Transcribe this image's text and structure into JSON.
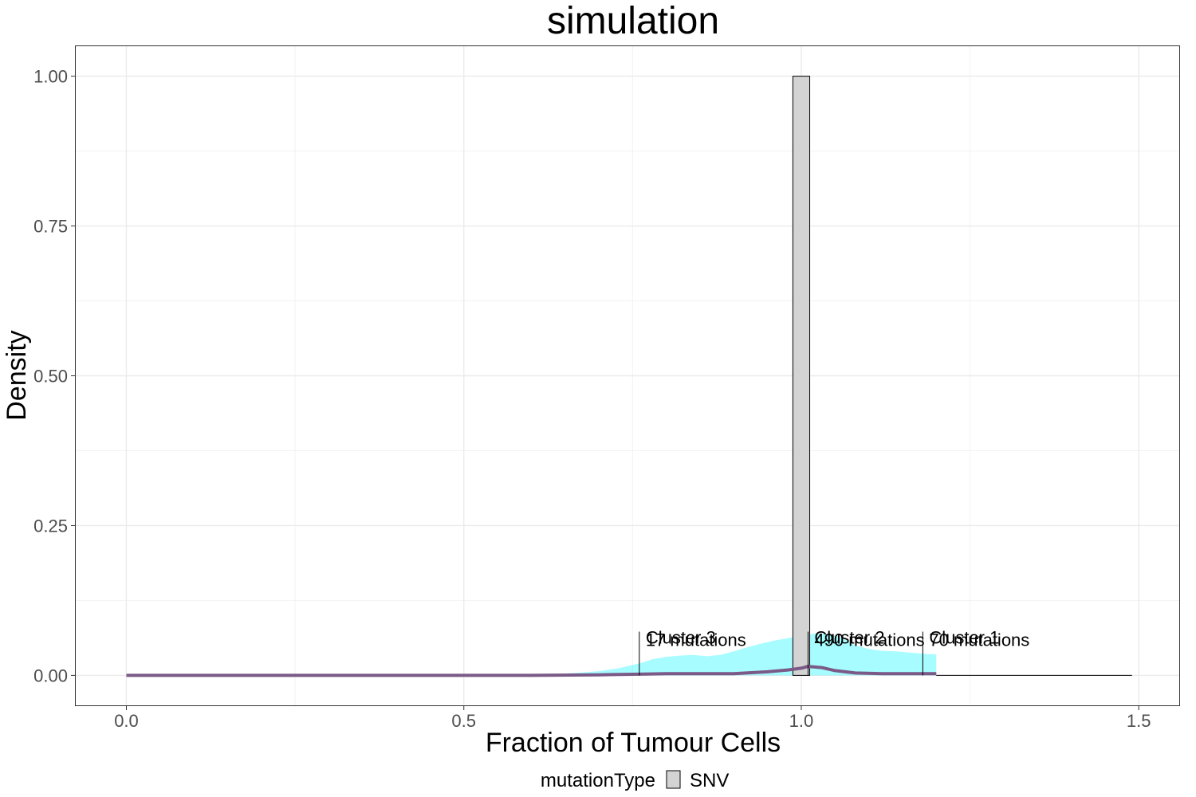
{
  "chart_data": {
    "type": "histogram",
    "title": "simulation",
    "xlabel": "Fraction of Tumour Cells",
    "ylabel": "Density",
    "xlim": [
      -0.075,
      1.56
    ],
    "ylim": [
      -0.05,
      1.05
    ],
    "x_ticks": [
      0.0,
      0.5,
      1.0,
      1.5
    ],
    "x_tick_labels": [
      "0.0",
      "0.5",
      "1.0",
      "1.5"
    ],
    "y_ticks": [
      0.0,
      0.25,
      0.5,
      0.75,
      1.0
    ],
    "y_tick_labels": [
      "0.00",
      "0.25",
      "0.50",
      "0.75",
      "1.00"
    ],
    "grid": true,
    "histogram": {
      "bins": [
        {
          "x0": 0.9875,
          "x1": 1.0125,
          "density": 1.0
        }
      ],
      "fill": "#d3d3d3",
      "stroke": "#000000"
    },
    "density_band": {
      "color": "#00f5ff",
      "points": [
        [
          0.0,
          0.0
        ],
        [
          0.55,
          0.0
        ],
        [
          0.6,
          0.001
        ],
        [
          0.65,
          0.003
        ],
        [
          0.7,
          0.007
        ],
        [
          0.73,
          0.012
        ],
        [
          0.76,
          0.02
        ],
        [
          0.78,
          0.027
        ],
        [
          0.8,
          0.031
        ],
        [
          0.82,
          0.033
        ],
        [
          0.84,
          0.034
        ],
        [
          0.86,
          0.032
        ],
        [
          0.88,
          0.034
        ],
        [
          0.9,
          0.04
        ],
        [
          0.92,
          0.047
        ],
        [
          0.94,
          0.053
        ],
        [
          0.96,
          0.058
        ],
        [
          0.98,
          0.062
        ],
        [
          1.0,
          0.066
        ],
        [
          1.02,
          0.07
        ],
        [
          1.04,
          0.069
        ],
        [
          1.06,
          0.063
        ],
        [
          1.08,
          0.05
        ],
        [
          1.1,
          0.044
        ],
        [
          1.12,
          0.041
        ],
        [
          1.14,
          0.04
        ],
        [
          1.16,
          0.038
        ],
        [
          1.18,
          0.036
        ],
        [
          1.2,
          0.035
        ],
        [
          1.2,
          0.0
        ]
      ]
    },
    "density_line": {
      "color": "#7b5a87",
      "points": [
        [
          0.0,
          0.0
        ],
        [
          0.6,
          0.0
        ],
        [
          0.7,
          0.001
        ],
        [
          0.76,
          0.002
        ],
        [
          0.8,
          0.003
        ],
        [
          0.85,
          0.003
        ],
        [
          0.9,
          0.003
        ],
        [
          0.95,
          0.006
        ],
        [
          0.98,
          0.009
        ],
        [
          1.0,
          0.012
        ],
        [
          1.01,
          0.015
        ],
        [
          1.03,
          0.013
        ],
        [
          1.05,
          0.008
        ],
        [
          1.08,
          0.004
        ],
        [
          1.12,
          0.003
        ],
        [
          1.16,
          0.003
        ],
        [
          1.2,
          0.003
        ]
      ]
    },
    "baseline": {
      "x0": 1.2,
      "x1": 1.49,
      "y": 0.0
    },
    "cluster_markers": [
      {
        "x": 0.76,
        "y_top": 0.073,
        "label": "Cluster 3",
        "count_label": "17 mutations"
      },
      {
        "x": 1.01,
        "y_top": 0.073,
        "label": "Cluster 2",
        "count_label": "490 mutations"
      },
      {
        "x": 1.18,
        "y_top": 0.073,
        "label": "Cluster 1",
        "count_label": "70 mutations"
      }
    ],
    "legend": {
      "position": "bottom",
      "title": "mutationType",
      "items": [
        {
          "label": "SNV",
          "fill": "#d3d3d3"
        }
      ]
    }
  }
}
